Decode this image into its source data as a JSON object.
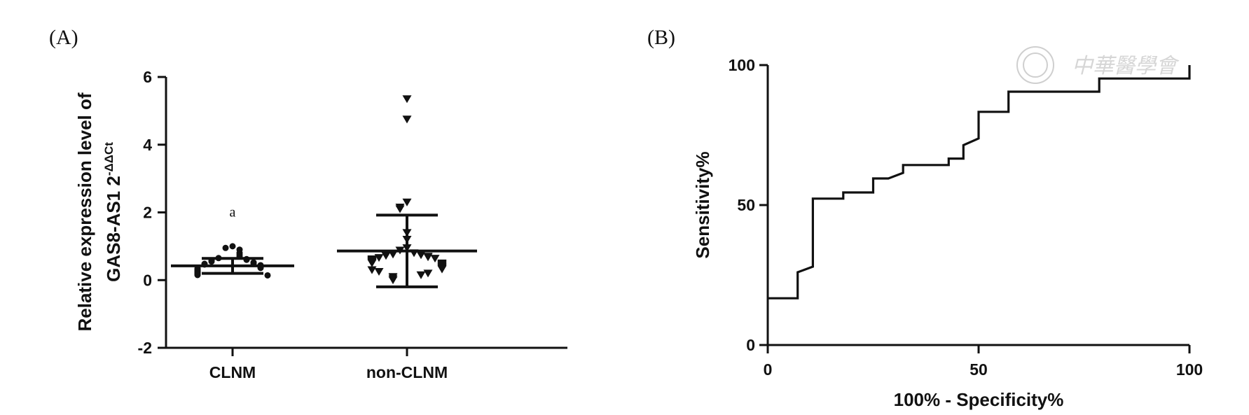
{
  "panels": {
    "a_label": "(A)",
    "b_label": "(B)"
  },
  "watermark": {
    "text": "中華醫學會"
  },
  "chart_data": [
    {
      "type": "scatter",
      "panel": "(A)",
      "ylabel_line1": "Relative expression level of",
      "ylabel_line2_prefix": "GAS8-AS1 2",
      "ylabel_superscript": "-ΔΔCt",
      "categories": [
        "CLNM",
        "non-CLNM"
      ],
      "yticks": [
        -2,
        0,
        2,
        4,
        6
      ],
      "ylim": [
        -2,
        6
      ],
      "annotation": "a",
      "groups": [
        {
          "category": "CLNM",
          "marker": "circle",
          "mean": 0.42,
          "sd_low": 0.2,
          "sd_high": 0.64,
          "points": [
            1.0,
            0.95,
            0.9,
            0.8,
            0.75,
            0.7,
            0.65,
            0.62,
            0.6,
            0.58,
            0.55,
            0.52,
            0.5,
            0.48,
            0.46,
            0.44,
            0.42,
            0.4,
            0.38,
            0.36,
            0.34,
            0.32,
            0.3,
            0.28,
            0.26,
            0.24,
            0.22,
            0.2,
            0.18,
            0.16,
            0.15,
            0.14
          ]
        },
        {
          "category": "non-CLNM",
          "marker": "triangle-down",
          "mean": 0.86,
          "sd_low": -0.2,
          "sd_high": 1.92,
          "points": [
            5.35,
            4.75,
            2.3,
            2.15,
            2.1,
            1.4,
            1.2,
            0.95,
            0.88,
            0.8,
            0.78,
            0.76,
            0.74,
            0.72,
            0.7,
            0.68,
            0.66,
            0.64,
            0.62,
            0.6,
            0.58,
            0.56,
            0.54,
            0.52,
            0.5,
            0.5,
            0.48,
            0.46,
            0.44,
            0.42,
            0.4,
            0.38,
            0.36,
            0.34,
            0.32,
            0.3,
            0.25,
            0.2,
            0.15,
            0.1,
            0.05,
            0.0
          ]
        }
      ]
    },
    {
      "type": "line",
      "panel": "(B)",
      "xlabel": "100%  - Specificity%",
      "ylabel": "Sensitivity%",
      "xticks": [
        0,
        50,
        100
      ],
      "yticks": [
        0,
        50,
        100
      ],
      "xlim": [
        0,
        100
      ],
      "ylim": [
        0,
        100
      ],
      "step": true,
      "points": [
        [
          0,
          16.7
        ],
        [
          7.1,
          16.7
        ],
        [
          7.1,
          26
        ],
        [
          10.7,
          28
        ],
        [
          10.7,
          52.3
        ],
        [
          17.9,
          52.3
        ],
        [
          17.9,
          54.5
        ],
        [
          25,
          54.5
        ],
        [
          25,
          59.5
        ],
        [
          28.6,
          59.5
        ],
        [
          32.1,
          61.5
        ],
        [
          32.1,
          64.3
        ],
        [
          42.9,
          64.3
        ],
        [
          42.9,
          66.6
        ],
        [
          46.4,
          66.6
        ],
        [
          46.4,
          71.4
        ],
        [
          50,
          73.8
        ],
        [
          50,
          83.3
        ],
        [
          57.1,
          83.3
        ],
        [
          57.1,
          90.5
        ],
        [
          78.6,
          90.5
        ],
        [
          78.6,
          95.2
        ],
        [
          100,
          95.2
        ],
        [
          100,
          100
        ]
      ]
    }
  ]
}
